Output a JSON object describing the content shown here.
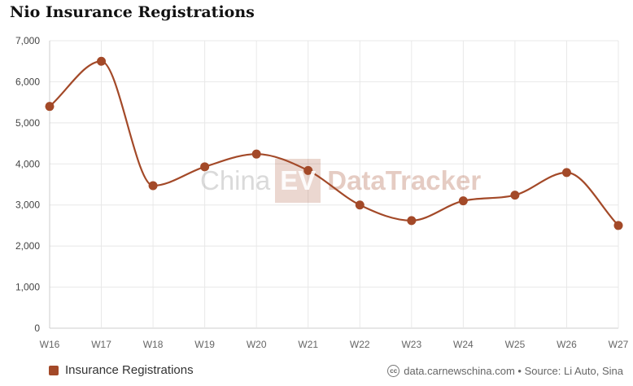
{
  "title": "Nio Insurance Registrations",
  "watermark": {
    "part1": "China",
    "part2": "EV",
    "part3": "DataTracker"
  },
  "footer": {
    "icon": "creative-commons-icon",
    "text": "data.carnewschina.com • Source: Li Auto, Sina"
  },
  "colors": {
    "series": "#a34928",
    "grid": "#e8e8e8",
    "axis": "#cccccc"
  },
  "chart_data": {
    "type": "line",
    "categories": [
      "W16",
      "W17",
      "W18",
      "W19",
      "W20",
      "W21",
      "W22",
      "W23",
      "W24",
      "W25",
      "W26",
      "W27"
    ],
    "series": [
      {
        "name": "Insurance Registrations",
        "values": [
          5400,
          6500,
          3470,
          3930,
          4240,
          3840,
          3000,
          2620,
          3100,
          3240,
          3790,
          2500
        ]
      }
    ],
    "ylim": [
      0,
      7000
    ],
    "yticks": [
      "0",
      "1,000",
      "2,000",
      "3,000",
      "4,000",
      "5,000",
      "6,000",
      "7,000"
    ],
    "grid": true,
    "legend_position": "bottom-left",
    "xlabel": "",
    "ylabel": ""
  }
}
